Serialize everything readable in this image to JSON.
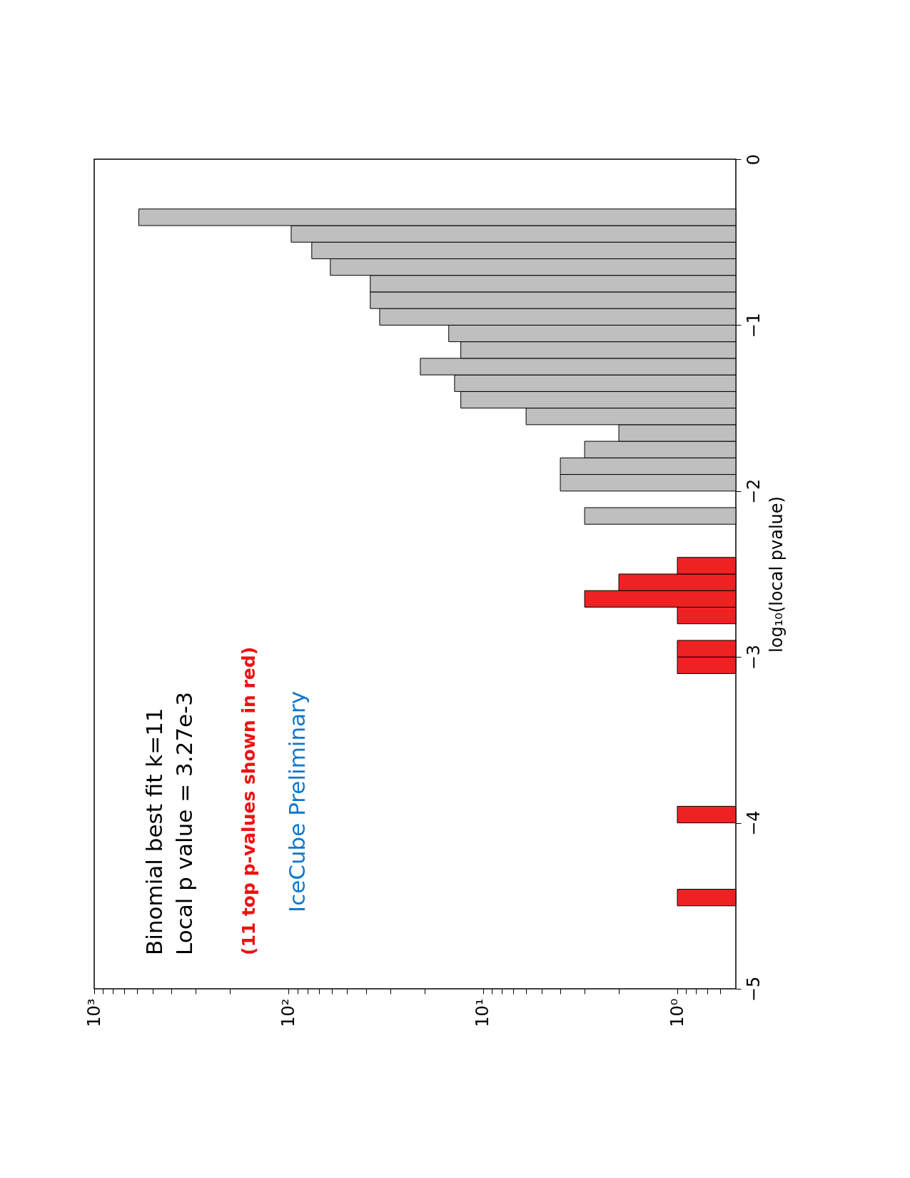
{
  "chart_data": {
    "type": "histogram",
    "orientation": "horizontal",
    "ylabel": "log₁₀(local pvalue)",
    "bins": [
      -4.5,
      -4.4,
      -4.3,
      -4.2,
      -4.1,
      -4.0,
      -3.9,
      -3.8,
      -3.7,
      -3.6,
      -3.5,
      -3.4,
      -3.3,
      -3.2,
      -3.1,
      -3.0,
      -2.9,
      -2.8,
      -2.7,
      -2.6,
      -2.5,
      -2.4,
      -2.3,
      -2.2,
      -2.1,
      -2.0,
      -1.9,
      -1.8,
      -1.7,
      -1.6,
      -1.5,
      -1.4,
      -1.3,
      -1.2,
      -1.1,
      -1.0,
      -0.9,
      -0.8,
      -0.7,
      -0.6,
      -0.5,
      -0.4,
      -0.3
    ],
    "values": [
      1,
      null,
      null,
      null,
      null,
      1,
      null,
      null,
      null,
      null,
      null,
      null,
      null,
      null,
      1,
      1,
      null,
      1,
      3,
      2,
      1,
      null,
      null,
      3,
      null,
      4,
      4,
      3,
      2,
      6,
      13,
      14,
      21,
      13,
      15,
      34,
      38,
      38,
      61,
      76,
      97,
      590
    ],
    "colors": [
      "#ee2222",
      null,
      null,
      null,
      null,
      "#ee2222",
      null,
      null,
      null,
      null,
      null,
      null,
      null,
      null,
      "#ee2222",
      "#ee2222",
      null,
      "#ee2222",
      "#ee2222",
      "#ee2222",
      "#ee2222",
      null,
      null,
      "#bfbfbf",
      null,
      "#bfbfbf",
      "#bfbfbf",
      "#bfbfbf",
      "#bfbfbf",
      "#bfbfbf",
      "#bfbfbf",
      "#bfbfbf",
      "#bfbfbf",
      "#bfbfbf",
      "#bfbfbf",
      "#bfbfbf",
      "#bfbfbf",
      "#bfbfbf",
      "#bfbfbf",
      "#bfbfbf",
      "#bfbfbf",
      "#bfbfbf"
    ],
    "ylim": [
      -5,
      0
    ],
    "yticks": [
      -5,
      -4,
      -3,
      -2,
      -1,
      0
    ],
    "xlim": [
      1000,
      0.5
    ],
    "xticks": [
      {
        "value": 1000,
        "label": "10³"
      },
      {
        "value": 900,
        "label": null
      },
      {
        "value": 800,
        "label": null
      },
      {
        "value": 700,
        "label": null
      },
      {
        "value": 600,
        "label": null
      },
      {
        "value": 500,
        "label": null
      },
      {
        "value": 400,
        "label": null
      },
      {
        "value": 300,
        "label": null
      },
      {
        "value": 200,
        "label": null
      },
      {
        "value": 100,
        "label": "10²"
      },
      {
        "value": 90,
        "label": null
      },
      {
        "value": 80,
        "label": null
      },
      {
        "value": 70,
        "label": null
      },
      {
        "value": 60,
        "label": null
      },
      {
        "value": 50,
        "label": null
      },
      {
        "value": 40,
        "label": null
      },
      {
        "value": 30,
        "label": null
      },
      {
        "value": 20,
        "label": null
      },
      {
        "value": 10,
        "label": "10¹"
      },
      {
        "value": 9,
        "label": null
      },
      {
        "value": 8,
        "label": null
      },
      {
        "value": 7,
        "label": null
      },
      {
        "value": 6,
        "label": null
      },
      {
        "value": 5,
        "label": null
      },
      {
        "value": 4,
        "label": null
      },
      {
        "value": 3,
        "label": null
      },
      {
        "value": 2,
        "label": null
      },
      {
        "value": 1,
        "label": "10⁰"
      },
      {
        "value": 0.9,
        "label": null
      },
      {
        "value": 0.8,
        "label": null
      },
      {
        "value": 0.7,
        "label": null
      },
      {
        "value": 0.6,
        "label": null
      }
    ],
    "log": "x",
    "grid": false,
    "annotations": [
      "Binomial best fit k=11",
      "Local p value =  3.27e-3",
      "(11 top p-values shown in red)",
      "IceCube Preliminary"
    ]
  }
}
